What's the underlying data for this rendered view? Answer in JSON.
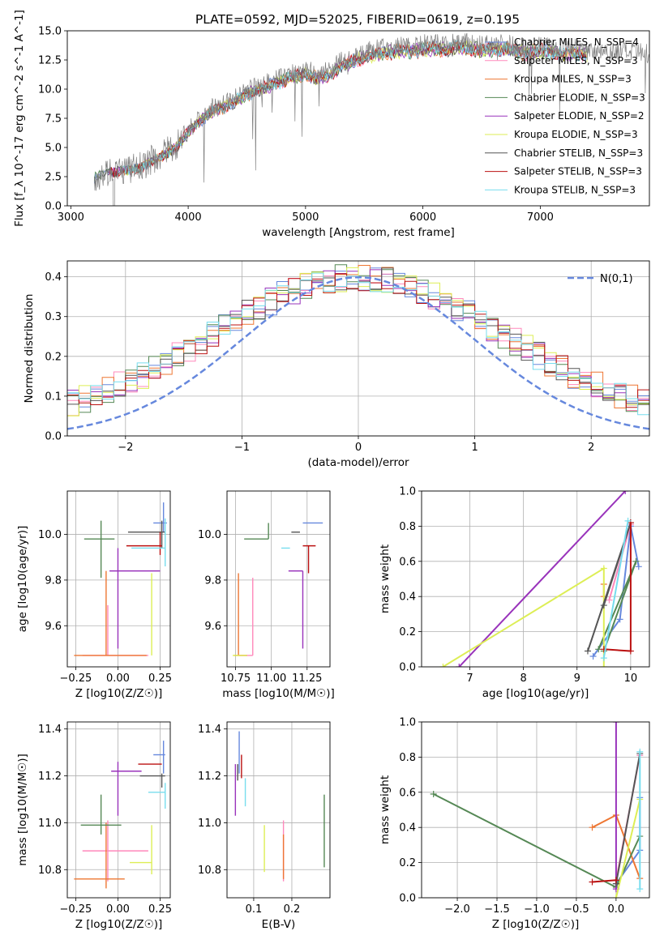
{
  "figure": {
    "title": "PLATE=0592, MJD=52025, FIBERID=0619, z=0.195"
  },
  "chart_data": [
    {
      "id": "spectrum",
      "type": "line",
      "xlabel": "wavelength [Angstrom, rest frame]",
      "ylabel": "Flux [f_λ 10^-17 erg cm^-2 s^-1 A^-1]",
      "xlim": [
        2970,
        7930
      ],
      "ylim": [
        0,
        15
      ],
      "xticks": [
        3000,
        4000,
        5000,
        6000,
        7000
      ],
      "yticks": [
        0.0,
        2.5,
        5.0,
        7.5,
        10.0,
        12.5,
        15.0
      ],
      "grid": false,
      "legend": "top-right",
      "observed": {
        "color": "#808080",
        "x": [
          3200,
          3300,
          3400,
          3500,
          3600,
          3700,
          3800,
          3900,
          4000,
          4100,
          4200,
          4300,
          4400,
          4500,
          4600,
          4700,
          4800,
          4900,
          5000,
          5100,
          5200,
          5300,
          5400,
          5500,
          5600,
          5700,
          5800,
          5900,
          6000,
          6100,
          6200,
          6300,
          6400,
          6500,
          6600,
          6700,
          6800,
          6900,
          7000,
          7100,
          7200,
          7300,
          7400,
          7500,
          7600,
          7700,
          7800,
          7900
        ],
        "y": [
          2.5,
          2.9,
          3.0,
          3.1,
          3.4,
          4.0,
          4.5,
          5.2,
          6.5,
          7.5,
          8.3,
          8.7,
          9.2,
          9.8,
          10.3,
          10.6,
          11.0,
          11.4,
          11.6,
          11.3,
          11.5,
          12.3,
          12.7,
          13.1,
          13.4,
          13.5,
          13.7,
          13.6,
          13.8,
          13.9,
          13.8,
          14.0,
          13.9,
          13.7,
          13.8,
          13.9,
          13.6,
          13.5,
          13.7,
          13.6,
          13.4,
          13.5,
          13.3,
          13.4,
          13.2,
          13.3,
          13.1,
          13.0
        ]
      },
      "model_wavelength_range": [
        3200,
        7400
      ],
      "series": [
        {
          "name": "Chabrier MILES, N_SSP=4",
          "color": "#6688dd"
        },
        {
          "name": "Salpeter MILES, N_SSP=3",
          "color": "#ff88bb"
        },
        {
          "name": "Kroupa MILES, N_SSP=3",
          "color": "#ee7733"
        },
        {
          "name": "Chabrier ELODIE, N_SSP=3",
          "color": "#558855"
        },
        {
          "name": "Salpeter ELODIE, N_SSP=2",
          "color": "#9933bb"
        },
        {
          "name": "Kroupa ELODIE, N_SSP=3",
          "color": "#ddee55"
        },
        {
          "name": "Chabrier STELIB, N_SSP=3",
          "color": "#555555"
        },
        {
          "name": "Salpeter STELIB, N_SSP=3",
          "color": "#bb1111"
        },
        {
          "name": "Kroupa STELIB, N_SSP=3",
          "color": "#77ddee"
        }
      ]
    },
    {
      "id": "residuals",
      "type": "line",
      "xlabel": "(data-model)/error",
      "ylabel": "Normed distribution",
      "xlim": [
        -2.5,
        2.5
      ],
      "ylim": [
        0,
        0.44
      ],
      "xticks": [
        -2,
        -1,
        0,
        1,
        2
      ],
      "yticks": [
        0.0,
        0.1,
        0.2,
        0.3,
        0.4
      ],
      "grid": true,
      "legend": "top-right",
      "gaussian": {
        "name": "N(0,1)",
        "color": "#6688dd"
      },
      "bin_width": 0.1
    },
    {
      "id": "age-vs-Z",
      "type": "scatter",
      "xlabel": "Z [log10(Z/Z☉)]",
      "ylabel": "age  [log10(age/yr)]",
      "xlim": [
        -0.3,
        0.31
      ],
      "ylim": [
        9.42,
        10.19
      ],
      "xticks": [
        -0.25,
        0.0,
        0.25
      ],
      "yticks": [
        9.6,
        9.8,
        10.0
      ],
      "points": [
        {
          "x": 0.27,
          "y": 10.05,
          "xerr": [
            0.06,
            0.02
          ],
          "yerr": [
            0.04,
            0.09
          ],
          "color": "#6688dd"
        },
        {
          "x": -0.06,
          "y": 9.47,
          "xerr": [
            0.15,
            0.24
          ],
          "yerr": [
            0.0,
            0.22
          ],
          "color": "#ff88bb"
        },
        {
          "x": -0.07,
          "y": 9.47,
          "xerr": [
            0.19,
            0.24
          ],
          "yerr": [
            0.0,
            0.37
          ],
          "color": "#ee7733"
        },
        {
          "x": -0.1,
          "y": 9.98,
          "xerr": [
            0.1,
            0.08
          ],
          "yerr": [
            0.17,
            0.08
          ],
          "color": "#558855"
        },
        {
          "x": 0.0,
          "y": 9.84,
          "xerr": [
            0.05,
            0.25
          ],
          "yerr": [
            0.34,
            0.1
          ],
          "color": "#9933bb"
        },
        {
          "x": 0.2,
          "y": 9.47,
          "xerr": [
            0.0,
            0.0
          ],
          "yerr": [
            0.0,
            0.36
          ],
          "color": "#ddee55"
        },
        {
          "x": 0.26,
          "y": 10.01,
          "xerr": [
            0.2,
            0.02
          ],
          "yerr": [
            0.07,
            0.05
          ],
          "color": "#555555"
        },
        {
          "x": 0.25,
          "y": 9.95,
          "xerr": [
            0.2,
            0.01
          ],
          "yerr": [
            0.04,
            0.06
          ],
          "color": "#bb1111"
        },
        {
          "x": 0.28,
          "y": 9.94,
          "xerr": [
            0.2,
            0.0
          ],
          "yerr": [
            0.08,
            0.13
          ],
          "color": "#77ddee"
        }
      ]
    },
    {
      "id": "age-vs-mass",
      "type": "scatter",
      "xlabel": "mass [log10(M/M☉)]",
      "ylabel": "",
      "xlim": [
        10.69,
        11.41
      ],
      "ylim": [
        9.42,
        10.19
      ],
      "xticks": [
        10.75,
        11.0,
        11.25
      ],
      "yticks": [
        9.6,
        9.8,
        10.0
      ],
      "points": [
        {
          "x": 11.29,
          "y": 10.05,
          "xerr": [
            0.07,
            0.07
          ],
          "yerr": [
            0.0,
            0.0
          ],
          "color": "#6688dd"
        },
        {
          "x": 10.87,
          "y": 9.47,
          "xerr": [
            0.1,
            0.0
          ],
          "yerr": [
            0.0,
            0.34
          ],
          "color": "#ff88bb"
        },
        {
          "x": 10.77,
          "y": 9.47,
          "xerr": [
            0.03,
            0.06
          ],
          "yerr": [
            0.0,
            0.36
          ],
          "color": "#ee7733"
        },
        {
          "x": 10.98,
          "y": 9.98,
          "xerr": [
            0.17,
            0.0
          ],
          "yerr": [
            0.0,
            0.07
          ],
          "color": "#558855"
        },
        {
          "x": 11.22,
          "y": 9.84,
          "xerr": [
            0.1,
            0.0
          ],
          "yerr": [
            0.34,
            0.0
          ],
          "color": "#9933bb"
        },
        {
          "x": 10.83,
          "y": 9.47,
          "xerr": [
            0.1,
            0.0
          ],
          "yerr": [
            0.0,
            0.0
          ],
          "color": "#ddee55"
        },
        {
          "x": 11.2,
          "y": 10.01,
          "xerr": [
            0.06,
            0.0
          ],
          "yerr": [
            0.0,
            0.0
          ],
          "color": "#555555"
        },
        {
          "x": 11.26,
          "y": 9.95,
          "xerr": [
            0.04,
            0.05
          ],
          "yerr": [
            0.12,
            0.0
          ],
          "color": "#bb1111"
        },
        {
          "x": 11.13,
          "y": 9.94,
          "xerr": [
            0.06,
            0.0
          ],
          "yerr": [
            0.0,
            0.0
          ],
          "color": "#77ddee"
        }
      ]
    },
    {
      "id": "weight-vs-age",
      "type": "line",
      "xlabel": "age  [log10(age/yr)]",
      "ylabel": "mass weight",
      "xlim": [
        6.1,
        10.35
      ],
      "ylim": [
        0,
        1
      ],
      "xticks": [
        7,
        8,
        9,
        10
      ],
      "yticks": [
        0.0,
        0.2,
        0.4,
        0.6,
        0.8,
        1.0
      ],
      "grid": true,
      "series": [
        {
          "color": "#6688dd",
          "points": [
            [
              9.3,
              0.06
            ],
            [
              9.8,
              0.27
            ],
            [
              10.0,
              0.8
            ],
            [
              10.15,
              0.57
            ]
          ]
        },
        {
          "color": "#ff88bb",
          "points": [
            [
              9.6,
              0.38
            ],
            [
              10.0,
              0.81
            ]
          ]
        },
        {
          "color": "#ee7733",
          "points": [
            [
              9.5,
              0.47
            ],
            [
              9.5,
              0.4
            ]
          ]
        },
        {
          "color": "#558855",
          "points": [
            [
              9.4,
              0.1
            ],
            [
              10.1,
              0.6
            ],
            [
              9.5,
              0.09
            ]
          ]
        },
        {
          "color": "#9933bb",
          "points": [
            [
              6.8,
              0.0
            ],
            [
              9.9,
              1.0
            ]
          ]
        },
        {
          "color": "#ddee55",
          "points": [
            [
              6.5,
              0.0
            ],
            [
              9.5,
              0.56
            ],
            [
              9.5,
              0.0
            ]
          ]
        },
        {
          "color": "#555555",
          "points": [
            [
              9.2,
              0.09
            ],
            [
              10.0,
              0.82
            ],
            [
              9.5,
              0.35
            ]
          ]
        },
        {
          "color": "#bb1111",
          "points": [
            [
              9.5,
              0.1
            ],
            [
              10.0,
              0.09
            ],
            [
              10.0,
              0.82
            ]
          ]
        },
        {
          "color": "#77ddee",
          "points": [
            [
              9.5,
              0.05
            ],
            [
              9.95,
              0.83
            ]
          ]
        }
      ]
    },
    {
      "id": "mass-vs-Z",
      "type": "scatter",
      "xlabel": "Z [log10(Z/Z☉)]",
      "ylabel": "mass [log10(M/M☉)]",
      "xlim": [
        -0.3,
        0.31
      ],
      "ylim": [
        10.68,
        11.43
      ],
      "xticks": [
        -0.25,
        0.0,
        0.25
      ],
      "yticks": [
        10.8,
        11.0,
        11.2,
        11.4
      ],
      "points": [
        {
          "x": 0.27,
          "y": 11.29,
          "xerr": [
            0.06,
            0.01
          ],
          "yerr": [
            0.08,
            0.06
          ],
          "color": "#6688dd"
        },
        {
          "x": -0.06,
          "y": 10.88,
          "xerr": [
            0.15,
            0.24
          ],
          "yerr": [
            0.13,
            0.13
          ],
          "color": "#ff88bb"
        },
        {
          "x": -0.07,
          "y": 10.76,
          "xerr": [
            0.19,
            0.11
          ],
          "yerr": [
            0.04,
            0.24
          ],
          "color": "#ee7733"
        },
        {
          "x": -0.1,
          "y": 10.99,
          "xerr": [
            0.12,
            0.12
          ],
          "yerr": [
            0.04,
            0.13
          ],
          "color": "#558855"
        },
        {
          "x": 0.0,
          "y": 11.22,
          "xerr": [
            0.04,
            0.14
          ],
          "yerr": [
            0.19,
            0.04
          ],
          "color": "#9933bb"
        },
        {
          "x": 0.2,
          "y": 10.83,
          "xerr": [
            0.13,
            0.0
          ],
          "yerr": [
            0.05,
            0.16
          ],
          "color": "#ddee55"
        },
        {
          "x": 0.26,
          "y": 11.2,
          "xerr": [
            0.13,
            0.02
          ],
          "yerr": [
            0.05,
            0.01
          ],
          "color": "#555555"
        },
        {
          "x": 0.25,
          "y": 11.25,
          "xerr": [
            0.13,
            0.01
          ],
          "yerr": [
            0.0,
            0.0
          ],
          "color": "#bb1111"
        },
        {
          "x": 0.28,
          "y": 11.13,
          "xerr": [
            0.1,
            0.0
          ],
          "yerr": [
            0.07,
            0.04
          ],
          "color": "#77ddee"
        }
      ]
    },
    {
      "id": "mass-vs-EBV",
      "type": "scatter",
      "xlabel": "E(B-V)",
      "ylabel": "",
      "xlim": [
        0.03,
        0.3
      ],
      "ylim": [
        10.68,
        11.43
      ],
      "xticks": [
        0.1,
        0.2
      ],
      "yticks": [
        10.8,
        11.0,
        11.2,
        11.4
      ],
      "points": [
        {
          "x": 0.062,
          "y": 11.29,
          "xerr": [
            0,
            0
          ],
          "yerr": [
            0.08,
            0.1
          ],
          "color": "#6688dd"
        },
        {
          "x": 0.178,
          "y": 10.88,
          "xerr": [
            0,
            0
          ],
          "yerr": [
            0.13,
            0.13
          ],
          "color": "#ff88bb"
        },
        {
          "x": 0.178,
          "y": 10.84,
          "xerr": [
            0,
            0
          ],
          "yerr": [
            0.08,
            0.11
          ],
          "color": "#ee7733"
        },
        {
          "x": 0.285,
          "y": 10.97,
          "xerr": [
            0,
            0
          ],
          "yerr": [
            0.16,
            0.15
          ],
          "color": "#558855"
        },
        {
          "x": 0.052,
          "y": 11.15,
          "xerr": [
            0,
            0
          ],
          "yerr": [
            0.12,
            0.1
          ],
          "color": "#9933bb"
        },
        {
          "x": 0.128,
          "y": 10.89,
          "xerr": [
            0,
            0
          ],
          "yerr": [
            0.1,
            0.1
          ],
          "color": "#ddee55"
        },
        {
          "x": 0.058,
          "y": 11.2,
          "xerr": [
            0,
            0
          ],
          "yerr": [
            0.02,
            0.05
          ],
          "color": "#555555"
        },
        {
          "x": 0.068,
          "y": 11.24,
          "xerr": [
            0,
            0
          ],
          "yerr": [
            0.05,
            0.05
          ],
          "color": "#bb1111"
        },
        {
          "x": 0.078,
          "y": 11.13,
          "xerr": [
            0,
            0
          ],
          "yerr": [
            0.06,
            0.06
          ],
          "color": "#77ddee"
        }
      ]
    },
    {
      "id": "weight-vs-Z",
      "type": "line",
      "xlabel": "Z [log10(Z/Z☉)]",
      "ylabel": "mass weight",
      "xlim": [
        -2.45,
        0.42
      ],
      "ylim": [
        0,
        1
      ],
      "xticks": [
        -2.0,
        -1.5,
        -1.0,
        -0.5,
        0.0
      ],
      "yticks": [
        0.0,
        0.2,
        0.4,
        0.6,
        0.8,
        1.0
      ],
      "grid": true,
      "series": [
        {
          "color": "#6688dd",
          "points": [
            [
              0.0,
              0.08
            ],
            [
              0.3,
              0.27
            ],
            [
              0.3,
              0.57
            ]
          ]
        },
        {
          "color": "#ff88bb",
          "points": [
            [
              0.0,
              0.1
            ],
            [
              0.3,
              0.81
            ]
          ]
        },
        {
          "color": "#ee7733",
          "points": [
            [
              -0.3,
              0.4
            ],
            [
              0.0,
              0.47
            ],
            [
              0.3,
              0.11
            ]
          ]
        },
        {
          "color": "#558855",
          "points": [
            [
              -2.3,
              0.59
            ],
            [
              0.0,
              0.06
            ],
            [
              0.3,
              0.35
            ]
          ]
        },
        {
          "color": "#9933bb",
          "points": [
            [
              0.0,
              0.05
            ],
            [
              0.0,
              1.0
            ]
          ]
        },
        {
          "color": "#ddee55",
          "points": [
            [
              0.0,
              0.0
            ],
            [
              0.3,
              0.56
            ]
          ]
        },
        {
          "color": "#555555",
          "points": [
            [
              0.0,
              0.08
            ],
            [
              0.3,
              0.82
            ]
          ]
        },
        {
          "color": "#bb1111",
          "points": [
            [
              -0.3,
              0.09
            ],
            [
              0.0,
              0.1
            ]
          ]
        },
        {
          "color": "#77ddee",
          "points": [
            [
              0.3,
              0.05
            ],
            [
              0.3,
              0.83
            ]
          ]
        }
      ]
    }
  ]
}
